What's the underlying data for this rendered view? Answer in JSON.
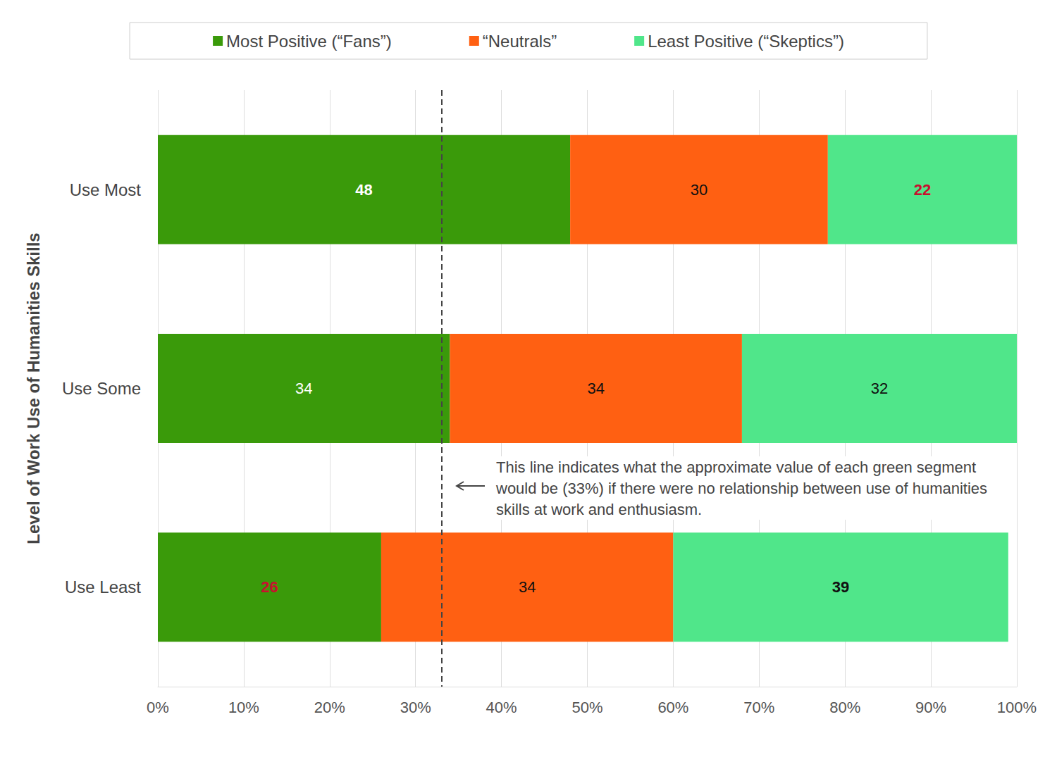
{
  "chart_data": {
    "type": "bar",
    "orientation": "horizontal",
    "stacked": true,
    "data_labels": true,
    "grid": true,
    "legend": "top",
    "y_label": "Level of Work Use of Humanities Skills",
    "categories": [
      "Use Most",
      "Use Some",
      "Use Least"
    ],
    "series": [
      {
        "name": "Most Positive (“Fans”)",
        "color": "#3a9a0a",
        "values": [
          48,
          34,
          26
        ]
      },
      {
        "name": "“Neutrals”",
        "color": "#ff6012",
        "values": [
          30,
          34,
          34
        ]
      },
      {
        "name": "Least Positive (“Skeptics”)",
        "color": "#50e68a",
        "values": [
          22,
          32,
          39
        ]
      }
    ],
    "xlim": [
      0,
      100
    ],
    "xticks": [
      {
        "value": 0,
        "label": "0%"
      },
      {
        "value": 10,
        "label": "10%"
      },
      {
        "value": 20,
        "label": "20%"
      },
      {
        "value": 30,
        "label": "30%"
      },
      {
        "value": 40,
        "label": "40%"
      },
      {
        "value": 50,
        "label": "50%"
      },
      {
        "value": 60,
        "label": "60%"
      },
      {
        "value": 70,
        "label": "70%"
      },
      {
        "value": 80,
        "label": "80%"
      },
      {
        "value": 90,
        "label": "90%"
      },
      {
        "value": 100,
        "label": "100%"
      }
    ],
    "reference_value": 33,
    "annotation": "This line indicates what the approximate value of each green segment would be (33%) if there were no relationship between use of humanities skills at work and enthusiasm."
  }
}
